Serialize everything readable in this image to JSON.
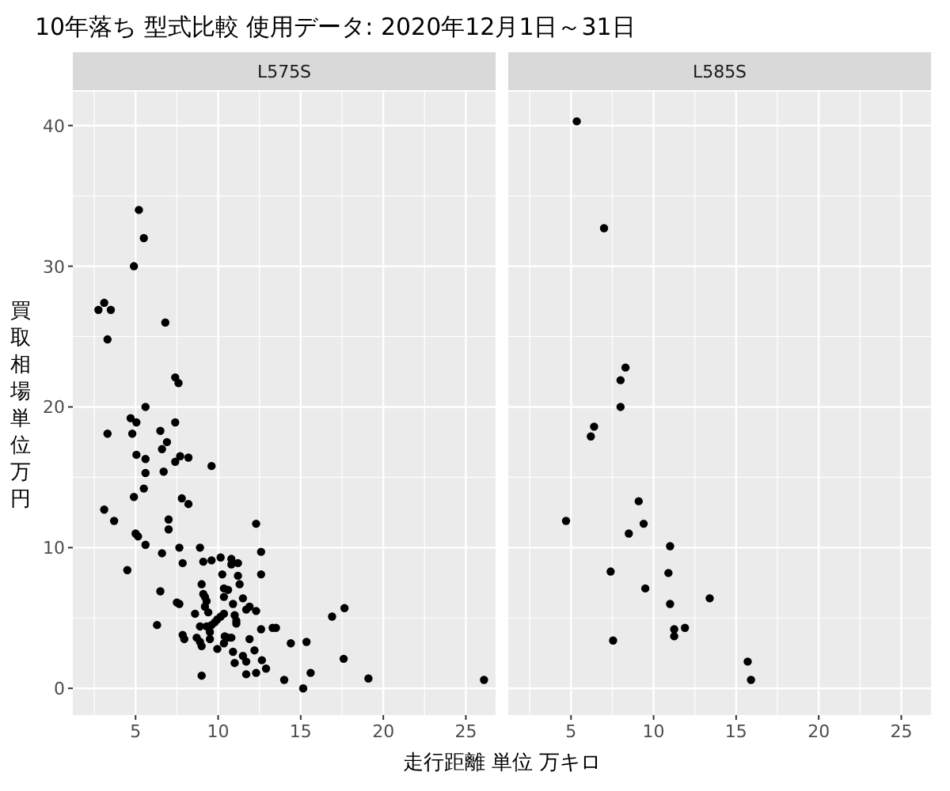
{
  "chart_data": [
    {
      "type": "scatter",
      "title": "10年落ち 型式比較 使用データ: 2020年12月1日～31日",
      "subtitle": "L575S",
      "xlabel": "走行距離 単位 万キロ",
      "ylabel": "買取相場単位万円",
      "xlim": [
        1.2,
        26.8
      ],
      "ylim": [
        -1.9,
        42.4
      ],
      "xticks": [
        5,
        10,
        15,
        20,
        25
      ],
      "yticks": [
        0,
        10,
        20,
        30,
        40
      ],
      "grid": true,
      "marker": "circle",
      "color": "#000000",
      "x": [
        5.2,
        5.5,
        4.9,
        3.1,
        2.75,
        3.5,
        6.8,
        3.3,
        7.4,
        7.6,
        5.6,
        4.7,
        5.05,
        3.3,
        4.8,
        7.4,
        6.5,
        6.9,
        6.6,
        5.05,
        5.6,
        7.7,
        8.2,
        7.4,
        5.6,
        6.7,
        9.6,
        5.5,
        4.9,
        7.8,
        8.2,
        3.1,
        3.7,
        7.0,
        7.0,
        5.0,
        5.15,
        5.6,
        7.65,
        8.9,
        6.6,
        7.85,
        4.5,
        9.1,
        9.6,
        10.15,
        10.8,
        10.8,
        11.2,
        12.3,
        12.6,
        12.6,
        10.25,
        11.2,
        11.3,
        9.0,
        10.35,
        10.6,
        6.5,
        9.1,
        9.2,
        10.35,
        11.5,
        9.3,
        10.9,
        7.5,
        7.65,
        11.9,
        11.7,
        9.2,
        9.4,
        8.6,
        10.35,
        11.0,
        12.3,
        10.15,
        9.95,
        11.1,
        9.8,
        11.1,
        9.6,
        8.9,
        6.3,
        9.3,
        9.5,
        12.6,
        13.3,
        13.5,
        7.85,
        7.95,
        8.7,
        8.9,
        9.0,
        9.5,
        9.95,
        10.4,
        10.6,
        10.8,
        10.35,
        11.9,
        10.9,
        11.5,
        12.2,
        11.7,
        11.0,
        12.65,
        11.7,
        12.3,
        12.9,
        9.0,
        14.0,
        16.9,
        17.65,
        14.4,
        15.35,
        17.6,
        15.6,
        15.15,
        19.1,
        26.1
      ],
      "values": [
        34.0,
        32.0,
        30.0,
        27.4,
        26.9,
        26.9,
        26.0,
        24.8,
        22.1,
        21.7,
        20.0,
        19.2,
        18.9,
        18.1,
        18.1,
        18.9,
        18.3,
        17.5,
        17.0,
        16.6,
        16.3,
        16.5,
        16.4,
        16.1,
        15.3,
        15.4,
        15.8,
        14.2,
        13.6,
        13.5,
        13.1,
        12.7,
        11.9,
        12.0,
        11.3,
        11.0,
        10.8,
        10.2,
        10.0,
        10.0,
        9.6,
        8.9,
        8.4,
        9.0,
        9.1,
        9.3,
        9.2,
        8.8,
        8.9,
        11.7,
        9.7,
        8.1,
        8.1,
        8.0,
        7.4,
        7.4,
        7.1,
        7.0,
        6.9,
        6.7,
        6.5,
        6.5,
        6.4,
        6.2,
        6.0,
        6.1,
        6.0,
        5.8,
        5.6,
        5.8,
        5.4,
        5.3,
        5.3,
        5.2,
        5.5,
        5.1,
        4.9,
        4.8,
        4.7,
        4.6,
        4.5,
        4.4,
        4.5,
        4.4,
        4.0,
        4.2,
        4.3,
        4.3,
        3.8,
        3.5,
        3.6,
        3.3,
        3.0,
        3.5,
        2.8,
        3.7,
        3.6,
        3.6,
        3.2,
        3.5,
        2.6,
        2.3,
        2.7,
        1.9,
        1.8,
        2.0,
        1.0,
        1.1,
        1.4,
        0.9,
        0.6,
        5.1,
        5.7,
        3.2,
        3.3,
        2.1,
        1.1,
        0.0,
        0.7,
        0.6
      ]
    },
    {
      "type": "scatter",
      "subtitle": "L585S",
      "xlim": [
        1.2,
        26.8
      ],
      "ylim": [
        -1.9,
        42.4
      ],
      "xticks": [
        5,
        10,
        15,
        20,
        25
      ],
      "yticks": [
        0,
        10,
        20,
        30,
        40
      ],
      "tick_labels": "x",
      "grid": true,
      "marker": "circle",
      "color": "#000000",
      "x": [
        5.35,
        7.0,
        8.3,
        8.0,
        8.0,
        6.4,
        6.2,
        9.1,
        4.7,
        9.4,
        8.5,
        11.0,
        7.4,
        10.9,
        9.5,
        11.0,
        13.4,
        11.9,
        11.25,
        11.25,
        7.55,
        15.7,
        15.9
      ],
      "values": [
        40.3,
        32.7,
        22.8,
        21.9,
        20.0,
        18.6,
        17.9,
        13.3,
        11.9,
        11.7,
        11.0,
        10.1,
        8.3,
        8.2,
        7.1,
        6.0,
        6.4,
        4.3,
        4.2,
        3.7,
        3.4,
        1.9,
        0.6
      ]
    }
  ]
}
